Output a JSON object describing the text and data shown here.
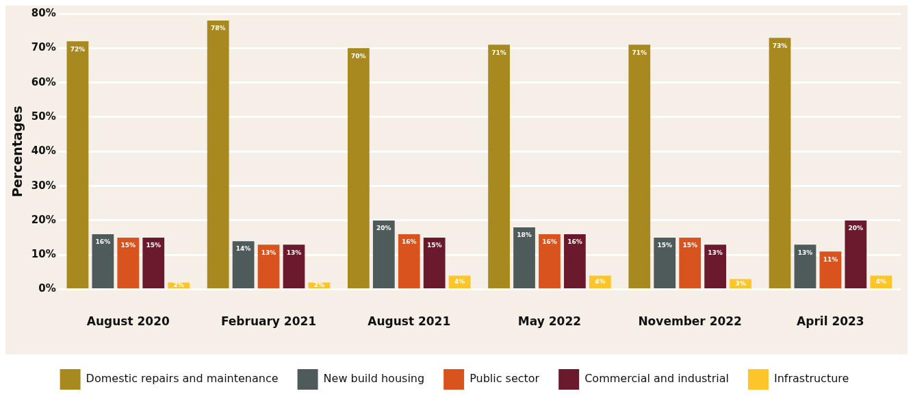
{
  "chart_data": {
    "type": "bar",
    "ylabel": "Percentages",
    "categories": [
      "August 2020",
      "February 2021",
      "August 2021",
      "May 2022",
      "November 2022",
      "April 2023"
    ],
    "series": [
      {
        "name": "Domestic repairs and maintenance",
        "color": "#a8891f",
        "values": [
          72,
          78,
          70,
          71,
          71,
          73
        ],
        "value_labels": [
          "72%",
          "78%",
          "70%",
          "71%",
          "71%",
          "73%"
        ]
      },
      {
        "name": "New build housing",
        "color": "#4f5a5b",
        "values": [
          16,
          14,
          20,
          18,
          15,
          13
        ],
        "value_labels": [
          "16%",
          "14%",
          "20%",
          "18%",
          "15%",
          "13%"
        ]
      },
      {
        "name": "Public sector",
        "color": "#d9531e",
        "values": [
          15,
          13,
          16,
          16,
          15,
          11
        ],
        "value_labels": [
          "15%",
          "13%",
          "16%",
          "16%",
          "15%",
          "11%"
        ]
      },
      {
        "name": "Commercial and industrial",
        "color": "#6b1a2d",
        "values": [
          15,
          13,
          15,
          16,
          13,
          20
        ],
        "value_labels": [
          "15%",
          "13%",
          "15%",
          "16%",
          "13%",
          "20%"
        ]
      },
      {
        "name": "Infrastructure",
        "color": "#fcc62a",
        "values": [
          2,
          2,
          4,
          4,
          3,
          4
        ],
        "value_labels": [
          "2%",
          "2%",
          "4%",
          "4%",
          "3%",
          "4%"
        ]
      }
    ],
    "ylim": [
      0,
      80
    ],
    "yticks": [
      {
        "value": 0,
        "label": "0%"
      },
      {
        "value": 10,
        "label": "10%"
      },
      {
        "value": 20,
        "label": "20%"
      },
      {
        "value": 30,
        "label": "30%"
      },
      {
        "value": 40,
        "label": "40%"
      },
      {
        "value": 50,
        "label": "50%"
      },
      {
        "value": 60,
        "label": "60%"
      },
      {
        "value": 70,
        "label": "70%"
      },
      {
        "value": 80,
        "label": "80%"
      }
    ],
    "grid": "y",
    "legend": "bottom"
  }
}
